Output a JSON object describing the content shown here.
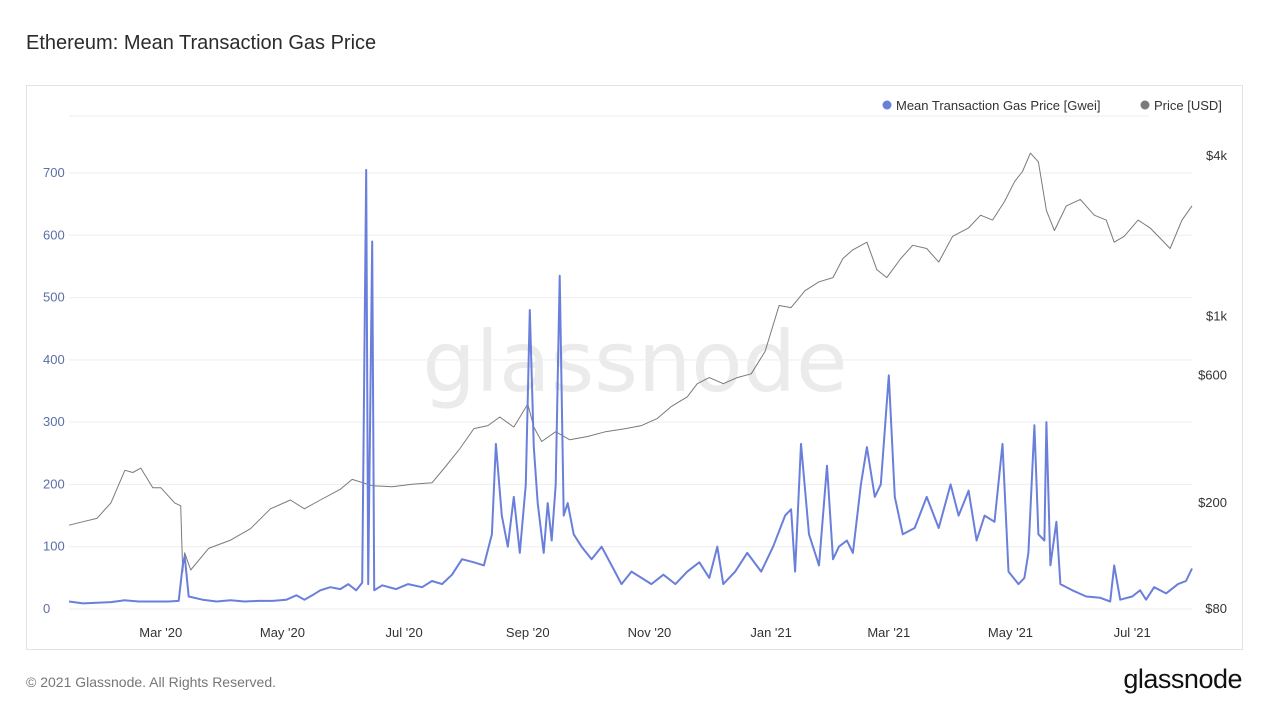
{
  "page": {
    "title": "Ethereum: Mean Transaction Gas Price",
    "copyright": "© 2021 Glassnode. All Rights Reserved.",
    "logo": "glassnode",
    "watermark": "glassnode"
  },
  "chart_data": {
    "type": "line",
    "title": "Ethereum: Mean Transaction Gas Price",
    "legend_position": "top-right",
    "grid": true,
    "x_range": [
      "2020-01-15",
      "2021-07-31"
    ],
    "x_tick_labels": [
      "Mar '20",
      "May '20",
      "Jul '20",
      "Sep '20",
      "Nov '20",
      "Jan '21",
      "Mar '21",
      "May '21",
      "Jul '21"
    ],
    "x_tick_dates": [
      "2020-03-01",
      "2020-05-01",
      "2020-07-01",
      "2020-09-01",
      "2020-11-01",
      "2021-01-01",
      "2021-03-01",
      "2021-05-01",
      "2021-07-01"
    ],
    "y_left": {
      "min": 0,
      "max": 700,
      "ticks": [
        0,
        100,
        200,
        300,
        400,
        500,
        600,
        700
      ],
      "tick_labels": [
        "0",
        "100",
        "200",
        "300",
        "400",
        "500",
        "600",
        "700"
      ]
    },
    "y_right": {
      "scale": "log",
      "min": 80,
      "max": 4000,
      "ticks": [
        80,
        200,
        600,
        1000,
        4000
      ],
      "tick_labels": [
        "$80",
        "$200",
        "$600",
        "$1k",
        "$4k"
      ]
    },
    "series": [
      {
        "name": "Mean Transaction Gas Price [Gwei]",
        "color": "#6a7fdb",
        "axis": "left",
        "points": [
          [
            "2020-01-15",
            12
          ],
          [
            "2020-01-22",
            9
          ],
          [
            "2020-01-29",
            10
          ],
          [
            "2020-02-05",
            11
          ],
          [
            "2020-02-12",
            14
          ],
          [
            "2020-02-19",
            12
          ],
          [
            "2020-02-26",
            12
          ],
          [
            "2020-03-05",
            12
          ],
          [
            "2020-03-10",
            13
          ],
          [
            "2020-03-12",
            70
          ],
          [
            "2020-03-13",
            85
          ],
          [
            "2020-03-15",
            20
          ],
          [
            "2020-03-22",
            15
          ],
          [
            "2020-03-29",
            12
          ],
          [
            "2020-04-05",
            14
          ],
          [
            "2020-04-12",
            12
          ],
          [
            "2020-04-19",
            13
          ],
          [
            "2020-04-26",
            13
          ],
          [
            "2020-05-03",
            15
          ],
          [
            "2020-05-08",
            22
          ],
          [
            "2020-05-12",
            15
          ],
          [
            "2020-05-16",
            22
          ],
          [
            "2020-05-20",
            30
          ],
          [
            "2020-05-25",
            35
          ],
          [
            "2020-05-30",
            32
          ],
          [
            "2020-06-03",
            40
          ],
          [
            "2020-06-07",
            30
          ],
          [
            "2020-06-10",
            42
          ],
          [
            "2020-06-12",
            705
          ],
          [
            "2020-06-13",
            40
          ],
          [
            "2020-06-15",
            590
          ],
          [
            "2020-06-16",
            30
          ],
          [
            "2020-06-20",
            38
          ],
          [
            "2020-06-27",
            32
          ],
          [
            "2020-07-03",
            40
          ],
          [
            "2020-07-10",
            35
          ],
          [
            "2020-07-15",
            45
          ],
          [
            "2020-07-20",
            40
          ],
          [
            "2020-07-25",
            55
          ],
          [
            "2020-07-30",
            80
          ],
          [
            "2020-08-05",
            75
          ],
          [
            "2020-08-10",
            70
          ],
          [
            "2020-08-14",
            120
          ],
          [
            "2020-08-16",
            265
          ],
          [
            "2020-08-19",
            150
          ],
          [
            "2020-08-22",
            100
          ],
          [
            "2020-08-25",
            180
          ],
          [
            "2020-08-28",
            90
          ],
          [
            "2020-08-31",
            200
          ],
          [
            "2020-09-02",
            480
          ],
          [
            "2020-09-04",
            260
          ],
          [
            "2020-09-06",
            170
          ],
          [
            "2020-09-09",
            90
          ],
          [
            "2020-09-11",
            170
          ],
          [
            "2020-09-13",
            110
          ],
          [
            "2020-09-15",
            200
          ],
          [
            "2020-09-17",
            535
          ],
          [
            "2020-09-19",
            150
          ],
          [
            "2020-09-21",
            170
          ],
          [
            "2020-09-24",
            120
          ],
          [
            "2020-09-28",
            100
          ],
          [
            "2020-10-03",
            80
          ],
          [
            "2020-10-08",
            100
          ],
          [
            "2020-10-13",
            70
          ],
          [
            "2020-10-18",
            40
          ],
          [
            "2020-10-23",
            60
          ],
          [
            "2020-10-28",
            50
          ],
          [
            "2020-11-02",
            40
          ],
          [
            "2020-11-08",
            55
          ],
          [
            "2020-11-14",
            40
          ],
          [
            "2020-11-20",
            60
          ],
          [
            "2020-11-26",
            75
          ],
          [
            "2020-12-01",
            50
          ],
          [
            "2020-12-05",
            100
          ],
          [
            "2020-12-08",
            40
          ],
          [
            "2020-12-14",
            60
          ],
          [
            "2020-12-20",
            90
          ],
          [
            "2020-12-27",
            60
          ],
          [
            "2021-01-02",
            100
          ],
          [
            "2021-01-08",
            150
          ],
          [
            "2021-01-11",
            160
          ],
          [
            "2021-01-13",
            60
          ],
          [
            "2021-01-16",
            265
          ],
          [
            "2021-01-20",
            120
          ],
          [
            "2021-01-25",
            70
          ],
          [
            "2021-01-29",
            230
          ],
          [
            "2021-02-01",
            80
          ],
          [
            "2021-02-04",
            100
          ],
          [
            "2021-02-08",
            110
          ],
          [
            "2021-02-11",
            90
          ],
          [
            "2021-02-15",
            200
          ],
          [
            "2021-02-18",
            260
          ],
          [
            "2021-02-22",
            180
          ],
          [
            "2021-02-25",
            200
          ],
          [
            "2021-03-01",
            375
          ],
          [
            "2021-03-04",
            180
          ],
          [
            "2021-03-08",
            120
          ],
          [
            "2021-03-14",
            130
          ],
          [
            "2021-03-20",
            180
          ],
          [
            "2021-03-26",
            130
          ],
          [
            "2021-04-01",
            200
          ],
          [
            "2021-04-05",
            150
          ],
          [
            "2021-04-10",
            190
          ],
          [
            "2021-04-14",
            110
          ],
          [
            "2021-04-18",
            150
          ],
          [
            "2021-04-23",
            140
          ],
          [
            "2021-04-27",
            265
          ],
          [
            "2021-04-30",
            60
          ],
          [
            "2021-05-05",
            40
          ],
          [
            "2021-05-08",
            50
          ],
          [
            "2021-05-10",
            90
          ],
          [
            "2021-05-13",
            295
          ],
          [
            "2021-05-15",
            120
          ],
          [
            "2021-05-18",
            110
          ],
          [
            "2021-05-19",
            300
          ],
          [
            "2021-05-21",
            70
          ],
          [
            "2021-05-24",
            140
          ],
          [
            "2021-05-26",
            40
          ],
          [
            "2021-06-01",
            30
          ],
          [
            "2021-06-08",
            20
          ],
          [
            "2021-06-15",
            18
          ],
          [
            "2021-06-20",
            12
          ],
          [
            "2021-06-22",
            70
          ],
          [
            "2021-06-25",
            15
          ],
          [
            "2021-07-01",
            20
          ],
          [
            "2021-07-05",
            30
          ],
          [
            "2021-07-08",
            15
          ],
          [
            "2021-07-12",
            35
          ],
          [
            "2021-07-18",
            25
          ],
          [
            "2021-07-24",
            40
          ],
          [
            "2021-07-28",
            45
          ],
          [
            "2021-07-31",
            65
          ]
        ]
      },
      {
        "name": "Price [USD]",
        "color": "#7a7a7a",
        "axis": "right",
        "points": [
          [
            "2020-01-15",
            165
          ],
          [
            "2020-01-22",
            170
          ],
          [
            "2020-01-29",
            175
          ],
          [
            "2020-02-05",
            200
          ],
          [
            "2020-02-12",
            265
          ],
          [
            "2020-02-16",
            260
          ],
          [
            "2020-02-20",
            270
          ],
          [
            "2020-02-26",
            228
          ],
          [
            "2020-03-01",
            228
          ],
          [
            "2020-03-08",
            200
          ],
          [
            "2020-03-11",
            195
          ],
          [
            "2020-03-12",
            110
          ],
          [
            "2020-03-13",
            130
          ],
          [
            "2020-03-16",
            112
          ],
          [
            "2020-03-25",
            135
          ],
          [
            "2020-04-05",
            145
          ],
          [
            "2020-04-15",
            160
          ],
          [
            "2020-04-25",
            190
          ],
          [
            "2020-05-05",
            205
          ],
          [
            "2020-05-12",
            190
          ],
          [
            "2020-05-20",
            205
          ],
          [
            "2020-05-30",
            225
          ],
          [
            "2020-06-05",
            245
          ],
          [
            "2020-06-15",
            232
          ],
          [
            "2020-06-25",
            230
          ],
          [
            "2020-07-05",
            235
          ],
          [
            "2020-07-15",
            238
          ],
          [
            "2020-07-22",
            275
          ],
          [
            "2020-07-29",
            320
          ],
          [
            "2020-08-05",
            380
          ],
          [
            "2020-08-12",
            390
          ],
          [
            "2020-08-18",
            420
          ],
          [
            "2020-08-25",
            385
          ],
          [
            "2020-09-01",
            470
          ],
          [
            "2020-09-04",
            385
          ],
          [
            "2020-09-08",
            340
          ],
          [
            "2020-09-15",
            370
          ],
          [
            "2020-09-22",
            345
          ],
          [
            "2020-10-01",
            355
          ],
          [
            "2020-10-10",
            370
          ],
          [
            "2020-10-20",
            380
          ],
          [
            "2020-10-28",
            390
          ],
          [
            "2020-11-05",
            415
          ],
          [
            "2020-11-12",
            460
          ],
          [
            "2020-11-20",
            500
          ],
          [
            "2020-11-25",
            560
          ],
          [
            "2020-12-01",
            590
          ],
          [
            "2020-12-08",
            560
          ],
          [
            "2020-12-15",
            590
          ],
          [
            "2020-12-22",
            610
          ],
          [
            "2020-12-29",
            740
          ],
          [
            "2021-01-05",
            1100
          ],
          [
            "2021-01-11",
            1080
          ],
          [
            "2021-01-18",
            1250
          ],
          [
            "2021-01-25",
            1350
          ],
          [
            "2021-02-01",
            1400
          ],
          [
            "2021-02-06",
            1650
          ],
          [
            "2021-02-11",
            1780
          ],
          [
            "2021-02-18",
            1900
          ],
          [
            "2021-02-23",
            1500
          ],
          [
            "2021-02-28",
            1400
          ],
          [
            "2021-03-07",
            1650
          ],
          [
            "2021-03-13",
            1850
          ],
          [
            "2021-03-20",
            1800
          ],
          [
            "2021-03-26",
            1600
          ],
          [
            "2021-04-02",
            2000
          ],
          [
            "2021-04-10",
            2150
          ],
          [
            "2021-04-16",
            2400
          ],
          [
            "2021-04-22",
            2300
          ],
          [
            "2021-04-28",
            2700
          ],
          [
            "2021-05-03",
            3200
          ],
          [
            "2021-05-07",
            3500
          ],
          [
            "2021-05-11",
            4100
          ],
          [
            "2021-05-15",
            3800
          ],
          [
            "2021-05-19",
            2500
          ],
          [
            "2021-05-23",
            2100
          ],
          [
            "2021-05-29",
            2600
          ],
          [
            "2021-06-05",
            2750
          ],
          [
            "2021-06-12",
            2400
          ],
          [
            "2021-06-18",
            2300
          ],
          [
            "2021-06-22",
            1900
          ],
          [
            "2021-06-27",
            2000
          ],
          [
            "2021-07-04",
            2300
          ],
          [
            "2021-07-10",
            2150
          ],
          [
            "2021-07-20",
            1800
          ],
          [
            "2021-07-26",
            2300
          ],
          [
            "2021-07-31",
            2600
          ]
        ]
      }
    ]
  }
}
